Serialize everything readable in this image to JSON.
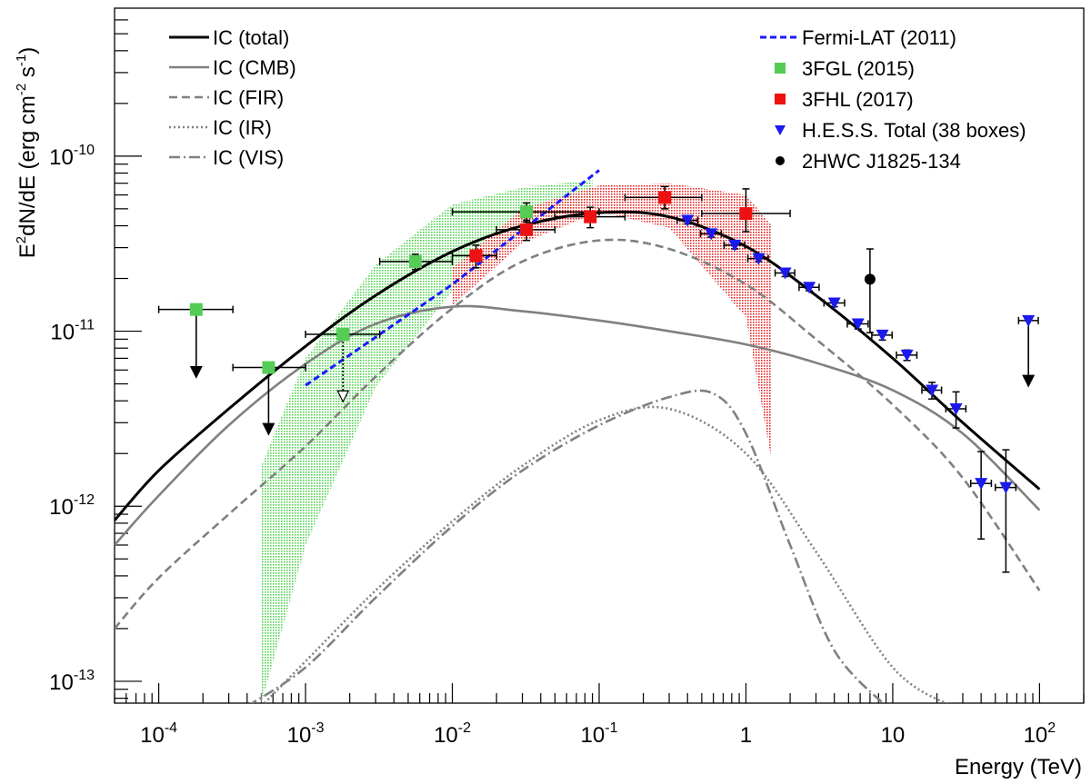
{
  "chart_data": {
    "type": "line",
    "xscale": "log",
    "yscale": "log",
    "xlim": [
      5e-05,
      200
    ],
    "ylim": [
      7.5e-14,
      7e-10
    ],
    "xlabel": "Energy (TeV)",
    "ylabel": "E2dN/dE (erg cm-2 s-1)",
    "ylabel_parts": {
      "a": "E",
      "b": "2",
      "c": "dN/dE (erg cm",
      "d": "-2",
      "e": " s",
      "f": "-1",
      "g": ")"
    },
    "x_ticks": [
      {
        "value": 0.0001,
        "base": "10",
        "exp": "-4"
      },
      {
        "value": 0.001,
        "base": "10",
        "exp": "-3"
      },
      {
        "value": 0.01,
        "base": "10",
        "exp": "-2"
      },
      {
        "value": 0.1,
        "base": "10",
        "exp": "-1"
      },
      {
        "value": 1,
        "text": "1"
      },
      {
        "value": 10,
        "text": "10"
      },
      {
        "value": 100,
        "base": "10",
        "exp": "2"
      }
    ],
    "y_ticks": [
      {
        "value": 1e-13,
        "base": "10",
        "exp": "-13"
      },
      {
        "value": 1e-12,
        "base": "10",
        "exp": "-12"
      },
      {
        "value": 1e-11,
        "base": "10",
        "exp": "-11"
      },
      {
        "value": 1e-10,
        "base": "10",
        "exp": "-10"
      }
    ],
    "model_curves": [
      {
        "name": "IC (total)",
        "color": "#000000",
        "dash": "solid",
        "points": [
          [
            5e-05,
            8.3e-13
          ],
          [
            0.0001,
            1.6e-12
          ],
          [
            0.0003,
            3.6e-12
          ],
          [
            0.001,
            8.2e-12
          ],
          [
            0.003,
            1.6e-11
          ],
          [
            0.01,
            2.85e-11
          ],
          [
            0.03,
            4e-11
          ],
          [
            0.1,
            4.75e-11
          ],
          [
            0.3,
            4.5e-11
          ],
          [
            1,
            3.05e-11
          ],
          [
            3,
            1.6e-11
          ],
          [
            10,
            7e-12
          ],
          [
            30,
            3e-12
          ],
          [
            100,
            1.25e-12
          ]
        ]
      },
      {
        "name": "IC (CMB)",
        "color": "#808080",
        "dash": "solid",
        "points": [
          [
            5e-05,
            6e-13
          ],
          [
            0.0001,
            1.15e-12
          ],
          [
            0.0003,
            2.9e-12
          ],
          [
            0.001,
            6.5e-12
          ],
          [
            0.003,
            1.1e-11
          ],
          [
            0.01,
            1.38e-11
          ],
          [
            0.03,
            1.3e-11
          ],
          [
            0.1,
            1.15e-11
          ],
          [
            0.3,
            1e-11
          ],
          [
            1,
            8.4e-12
          ],
          [
            3,
            6.6e-12
          ],
          [
            10,
            4.6e-12
          ],
          [
            30,
            2.6e-12
          ],
          [
            100,
            9.5e-13
          ]
        ]
      },
      {
        "name": "IC (FIR)",
        "color": "#808080",
        "dash": "dashed",
        "points": [
          [
            5e-05,
            2e-13
          ],
          [
            0.0001,
            3.9e-13
          ],
          [
            0.0003,
            9e-13
          ],
          [
            0.001,
            2.2e-12
          ],
          [
            0.003,
            5.5e-12
          ],
          [
            0.01,
            1.35e-11
          ],
          [
            0.03,
            2.5e-11
          ],
          [
            0.1,
            3.3e-11
          ],
          [
            0.3,
            2.95e-11
          ],
          [
            1,
            1.85e-11
          ],
          [
            3,
            9e-12
          ],
          [
            10,
            3.8e-12
          ],
          [
            30,
            1.45e-12
          ],
          [
            100,
            3.3e-13
          ]
        ]
      },
      {
        "name": "IC (IR)",
        "color": "#808080",
        "dash": "dotted",
        "points": [
          [
            0.0005,
            7.2e-14
          ],
          [
            0.001,
            1.3e-13
          ],
          [
            0.003,
            3.3e-13
          ],
          [
            0.01,
            8.2e-13
          ],
          [
            0.03,
            1.7e-12
          ],
          [
            0.1,
            3.1e-12
          ],
          [
            0.3,
            3.6e-12
          ],
          [
            1,
            2e-12
          ],
          [
            3,
            5.5e-13
          ],
          [
            10,
            1.2e-13
          ],
          [
            25,
            7.2e-14
          ]
        ]
      },
      {
        "name": "IC (VIS)",
        "color": "#808080",
        "dash": "dashdot",
        "points": [
          [
            0.0004,
            7.2e-14
          ],
          [
            0.001,
            1.2e-13
          ],
          [
            0.003,
            3e-13
          ],
          [
            0.01,
            7.7e-13
          ],
          [
            0.03,
            1.6e-12
          ],
          [
            0.1,
            2.9e-12
          ],
          [
            0.3,
            4.2e-12
          ],
          [
            0.6,
            4.4e-12
          ],
          [
            1,
            2.6e-12
          ],
          [
            2,
            6e-13
          ],
          [
            4,
            1.5e-13
          ],
          [
            9,
            7.2e-14
          ]
        ]
      },
      {
        "name": "Fermi-LAT (2011)",
        "color": "#1a1aff",
        "dash": "fermi",
        "points": [
          [
            0.001,
            4.9e-12
          ],
          [
            0.01,
            1.85e-11
          ],
          [
            0.1,
            8.3e-11
          ]
        ]
      }
    ],
    "bands": [
      {
        "name": "3FGL band",
        "color": "#33cc33",
        "upper": [
          [
            0.0005,
            1.7e-12
          ],
          [
            0.001,
            7e-12
          ],
          [
            0.003,
            2.4e-11
          ],
          [
            0.01,
            5.3e-11
          ],
          [
            0.03,
            6.6e-11
          ],
          [
            0.09,
            7.3e-11
          ]
        ],
        "lower": [
          [
            0.09,
            5.6e-11
          ],
          [
            0.03,
            3.6e-11
          ],
          [
            0.01,
            1.7e-11
          ],
          [
            0.003,
            4.8e-12
          ],
          [
            0.001,
            6e-13
          ],
          [
            0.0005,
            7.5e-14
          ]
        ]
      },
      {
        "name": "3FHL band",
        "color": "#e60000",
        "upper": [
          [
            0.01,
            2.3e-11
          ],
          [
            0.03,
            5e-11
          ],
          [
            0.1,
            6.8e-11
          ],
          [
            0.3,
            7e-11
          ],
          [
            1,
            6e-11
          ],
          [
            1.5,
            4e-11
          ]
        ],
        "lower": [
          [
            1.5,
            1.8e-12
          ],
          [
            1,
            1.2e-11
          ],
          [
            0.3,
            3.9e-11
          ],
          [
            0.1,
            4.8e-11
          ],
          [
            0.03,
            3.2e-11
          ],
          [
            0.01,
            1.4e-11
          ]
        ]
      }
    ],
    "series": [
      {
        "name": "3FGL (2015)",
        "color": "#55cc55",
        "marker": "square",
        "points": [
          {
            "x": 0.00018,
            "y": 1.33e-11,
            "xlo": 0.0001,
            "xhi": 0.00032,
            "ul": true,
            "ul_to": 5.5e-12
          },
          {
            "x": 0.00056,
            "y": 6.2e-12,
            "xlo": 0.00032,
            "xhi": 0.001,
            "ul": true,
            "ul_to": 2.6e-12
          },
          {
            "x": 0.0018,
            "y": 9.6e-12,
            "xlo": 0.001,
            "xhi": 0.0032,
            "ul": true,
            "ul_to": 4e-12,
            "dotted_ul": true
          },
          {
            "x": 0.0056,
            "y": 2.5e-11,
            "xlo": 0.0032,
            "xhi": 0.01,
            "ylo": 2.25e-11,
            "yhi": 2.75e-11
          },
          {
            "x": 0.032,
            "y": 4.8e-11,
            "xlo": 0.01,
            "xhi": 0.1,
            "ylo": 4.2e-11,
            "yhi": 5.4e-11
          }
        ]
      },
      {
        "name": "3FHL (2017)",
        "color": "#ee1111",
        "marker": "square",
        "points": [
          {
            "x": 0.0145,
            "y": 2.7e-11,
            "xlo": 0.01,
            "xhi": 0.02,
            "ylo": 2.3e-11,
            "yhi": 3.1e-11
          },
          {
            "x": 0.032,
            "y": 3.8e-11,
            "xlo": 0.02,
            "xhi": 0.05,
            "ylo": 3.3e-11,
            "yhi": 4.3e-11
          },
          {
            "x": 0.087,
            "y": 4.5e-11,
            "xlo": 0.05,
            "xhi": 0.15,
            "ylo": 3.9e-11,
            "yhi": 5.1e-11
          },
          {
            "x": 0.28,
            "y": 5.8e-11,
            "xlo": 0.15,
            "xhi": 0.5,
            "ylo": 5e-11,
            "yhi": 6.7e-11
          },
          {
            "x": 1.0,
            "y": 4.7e-11,
            "xlo": 0.5,
            "xhi": 2.0,
            "ylo": 3.7e-11,
            "yhi": 6.5e-11
          }
        ]
      },
      {
        "name": "H.E.S.S. Total (38 boxes)",
        "color": "#1a1aee",
        "marker": "triangle-down",
        "points": [
          {
            "x": 0.4,
            "y": 4.3e-11,
            "xlo": 0.34,
            "xhi": 0.47,
            "ylo": 4.1e-11,
            "yhi": 4.5e-11
          },
          {
            "x": 0.58,
            "y": 3.6e-11,
            "xlo": 0.49,
            "xhi": 0.68,
            "ylo": 3.45e-11,
            "yhi": 3.75e-11
          },
          {
            "x": 0.84,
            "y": 3.1e-11,
            "xlo": 0.71,
            "xhi": 0.98,
            "ylo": 2.95e-11,
            "yhi": 3.25e-11
          },
          {
            "x": 1.22,
            "y": 2.6e-11,
            "xlo": 1.03,
            "xhi": 1.42,
            "ylo": 2.5e-11,
            "yhi": 2.7e-11
          },
          {
            "x": 1.85,
            "y": 2.15e-11,
            "xlo": 1.58,
            "xhi": 2.15,
            "ylo": 2.05e-11,
            "yhi": 2.25e-11
          },
          {
            "x": 2.7,
            "y": 1.78e-11,
            "xlo": 2.3,
            "xhi": 3.15,
            "ylo": 1.7e-11,
            "yhi": 1.86e-11
          },
          {
            "x": 4.0,
            "y": 1.45e-11,
            "xlo": 3.4,
            "xhi": 4.7,
            "ylo": 1.38e-11,
            "yhi": 1.52e-11
          },
          {
            "x": 5.8,
            "y": 1.1e-11,
            "xlo": 4.9,
            "xhi": 6.8,
            "ylo": 1.03e-11,
            "yhi": 1.17e-11
          },
          {
            "x": 8.5,
            "y": 9.5e-12,
            "xlo": 7.2,
            "xhi": 9.9,
            "ylo": 8.9e-12,
            "yhi": 1.01e-11
          },
          {
            "x": 12.5,
            "y": 7.3e-12,
            "xlo": 10.6,
            "xhi": 14.6,
            "ylo": 6.8e-12,
            "yhi": 7.8e-12
          },
          {
            "x": 18.5,
            "y": 4.6e-12,
            "xlo": 15.8,
            "xhi": 21.5,
            "ylo": 4.1e-12,
            "yhi": 5.1e-12
          },
          {
            "x": 27.0,
            "y": 3.6e-12,
            "xlo": 23.0,
            "xhi": 31.5,
            "ylo": 2.8e-12,
            "yhi": 4.5e-12
          },
          {
            "x": 40.0,
            "y": 1.35e-12,
            "xlo": 34.0,
            "xhi": 47.0,
            "ylo": 6.5e-13,
            "yhi": 2.05e-12
          },
          {
            "x": 59.0,
            "y": 1.28e-12,
            "xlo": 50.0,
            "xhi": 69.0,
            "ylo": 4.2e-13,
            "yhi": 2.1e-12
          },
          {
            "x": 84.0,
            "y": 1.15e-11,
            "xlo": 72.0,
            "xhi": 98.0,
            "ul": true,
            "ul_to": 4.9e-12
          }
        ]
      },
      {
        "name": "2HWC J1825-134",
        "color": "#000000",
        "marker": "circle",
        "points": [
          {
            "x": 7.0,
            "y": 1.98e-11,
            "ylo": 9.8e-12,
            "yhi": 2.95e-11
          }
        ]
      }
    ],
    "legend": {
      "left": [
        {
          "label": "IC (total)",
          "symbol": "line",
          "color": "#000000",
          "dash": "solid"
        },
        {
          "label": "IC (CMB)",
          "symbol": "line",
          "color": "#808080",
          "dash": "solid"
        },
        {
          "label": "IC (FIR)",
          "symbol": "line",
          "color": "#808080",
          "dash": "dashed"
        },
        {
          "label": "IC (IR)",
          "symbol": "line",
          "color": "#808080",
          "dash": "dotted"
        },
        {
          "label": "IC (VIS)",
          "symbol": "line",
          "color": "#808080",
          "dash": "dashdot"
        }
      ],
      "right": [
        {
          "label": "Fermi-LAT (2011)",
          "symbol": "line",
          "color": "#1a1aff",
          "dash": "fermi"
        },
        {
          "label": "3FGL (2015)",
          "symbol": "square",
          "color": "#55cc55"
        },
        {
          "label": "3FHL (2017)",
          "symbol": "square",
          "color": "#ee1111"
        },
        {
          "label": "H.E.S.S. Total (38 boxes)",
          "symbol": "triangle-down",
          "color": "#1a1aee"
        },
        {
          "label": "2HWC J1825-134",
          "symbol": "circle",
          "color": "#000000"
        }
      ]
    }
  }
}
